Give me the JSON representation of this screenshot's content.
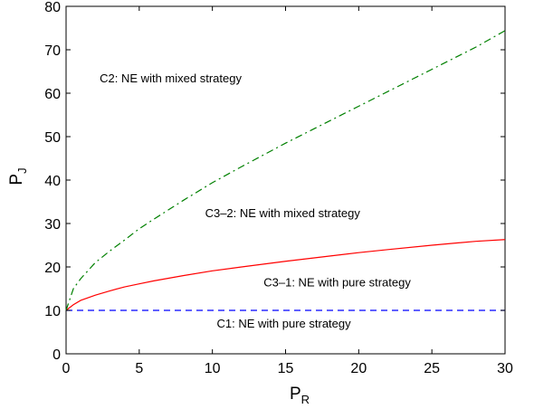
{
  "chart_data": {
    "type": "line",
    "xlabel_main": "P",
    "xlabel_sub": "R",
    "ylabel_main": "P",
    "ylabel_sub": "J",
    "xlim": [
      0,
      30
    ],
    "ylim": [
      0,
      80
    ],
    "xticks": [
      0,
      5,
      10,
      15,
      20,
      25,
      30
    ],
    "yticks": [
      0,
      10,
      20,
      30,
      40,
      50,
      60,
      70,
      80
    ],
    "grid": false,
    "series": [
      {
        "style": "dashed",
        "color": "#0000ff",
        "x": [
          0,
          30
        ],
        "y": [
          10,
          10
        ]
      },
      {
        "style": "solid",
        "color": "#ff0000",
        "x": [
          0,
          0.5,
          1,
          2,
          3,
          4,
          5,
          6,
          8,
          10,
          12,
          15,
          18,
          20,
          22,
          25,
          28,
          30
        ],
        "y": [
          10,
          11.3,
          12.3,
          13.5,
          14.5,
          15.4,
          16.1,
          16.8,
          18.0,
          19.1,
          20.0,
          21.3,
          22.5,
          23.3,
          24.0,
          25.0,
          25.9,
          26.3
        ]
      },
      {
        "style": "dashdot",
        "color": "#008000",
        "x": [
          0,
          0.5,
          1,
          2,
          3,
          4,
          5,
          6,
          8,
          10,
          12,
          15,
          18,
          20,
          22,
          25,
          28,
          30
        ],
        "y": [
          10,
          15.0,
          17.3,
          21.0,
          23.7,
          26.2,
          28.8,
          31.0,
          35.3,
          39.4,
          43.1,
          48.5,
          53.6,
          57.0,
          60.4,
          65.5,
          70.6,
          74.4
        ]
      }
    ],
    "annotations": [
      {
        "text": "C2: NE with mixed strategy",
        "x": 2.3,
        "y": 62.5
      },
      {
        "text": "C3–2: NE with mixed strategy",
        "x": 9.5,
        "y": 31.5
      },
      {
        "text": "C3–1: NE with pure strategy",
        "x": 13.5,
        "y": 15.5
      },
      {
        "text": "C1: NE with pure strategy",
        "x": 10.3,
        "y": 6.0
      }
    ]
  }
}
